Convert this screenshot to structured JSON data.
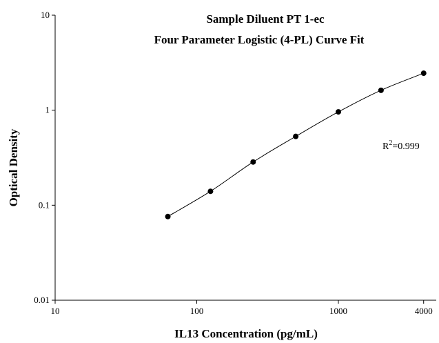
{
  "chart_data": {
    "type": "scatter",
    "title": "Sample Diluent PT 1-ec",
    "subtitle": "Four Parameter Logistic (4-PL) Curve Fit",
    "xlabel": "IL13 Concentration (pg/mL)",
    "ylabel": "Optical Density",
    "x_scale": "log",
    "y_scale": "log",
    "xlim": [
      10,
      4500
    ],
    "ylim": [
      0.01,
      10
    ],
    "x_ticks": [
      10,
      100,
      1000,
      4000
    ],
    "x_tick_labels": [
      "10",
      "100",
      "1000",
      "4000"
    ],
    "y_ticks": [
      0.01,
      0.1,
      1,
      10
    ],
    "y_tick_labels": [
      "0.01",
      "0.1",
      "1",
      "10"
    ],
    "grid": false,
    "series": [
      {
        "x": [
          62.5,
          125,
          250,
          500,
          1000,
          2000,
          4000
        ],
        "y": [
          0.076,
          0.14,
          0.285,
          0.53,
          0.96,
          1.62,
          2.45
        ]
      }
    ],
    "annotation": {
      "base": "R",
      "superscript": "2",
      "value": "=0.999"
    }
  }
}
